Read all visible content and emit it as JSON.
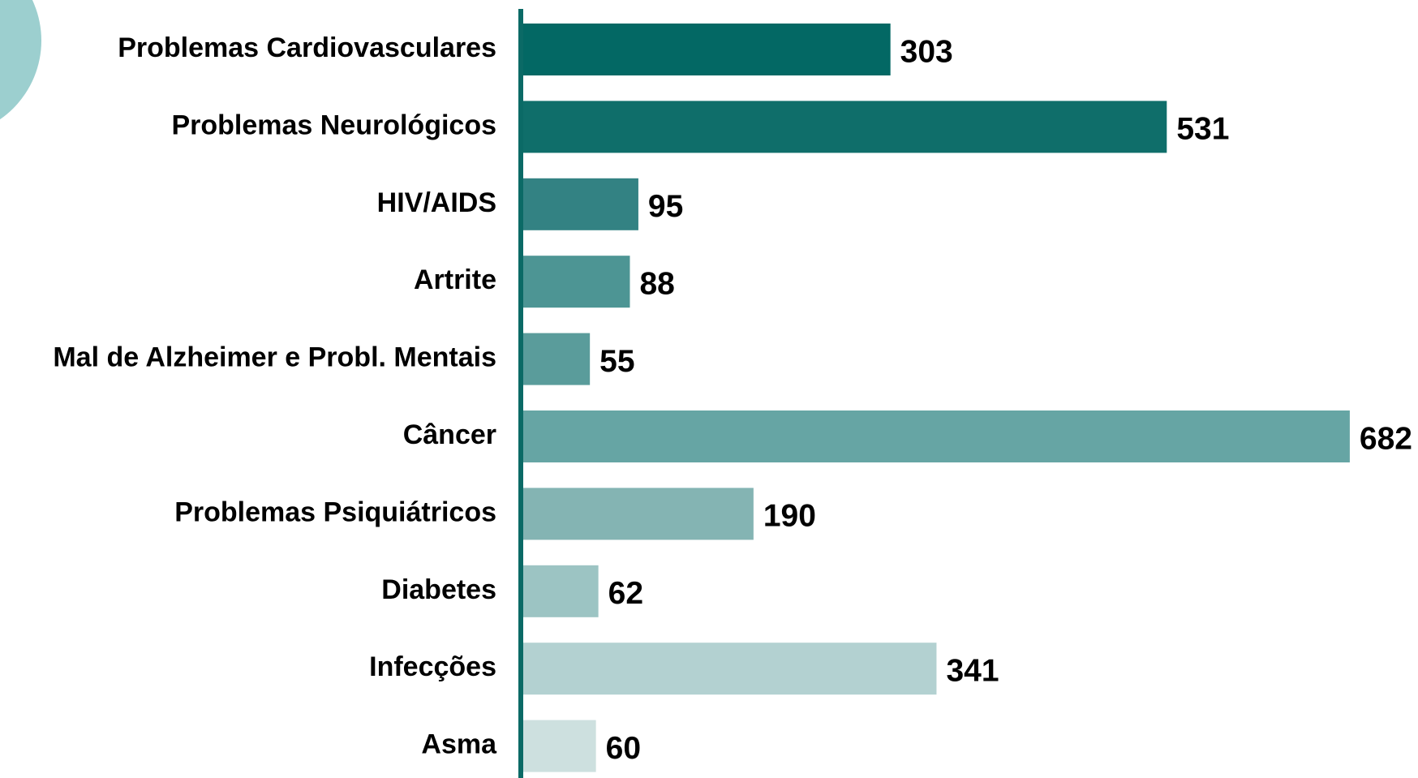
{
  "chart_data": {
    "type": "bar",
    "orientation": "horizontal",
    "categories": [
      "Problemas Cardiovasculares",
      "Problemas Neurológicos",
      "HIV/AIDS",
      "Artrite",
      "Mal de Alzheimer e Probl. Mentais",
      "Câncer",
      "Problemas Psiquiátricos",
      "Diabetes",
      "Infecções",
      "Asma"
    ],
    "values": [
      303,
      531,
      95,
      88,
      55,
      682,
      190,
      62,
      341,
      60
    ],
    "colors": [
      "#036864",
      "#0f6e6a",
      "#338283",
      "#4d9594",
      "#5a9c9b",
      "#66a5a4",
      "#84b4b3",
      "#9cc4c3",
      "#b3d1d1",
      "#cde0df"
    ],
    "axis_color": "#0b6a66"
  }
}
